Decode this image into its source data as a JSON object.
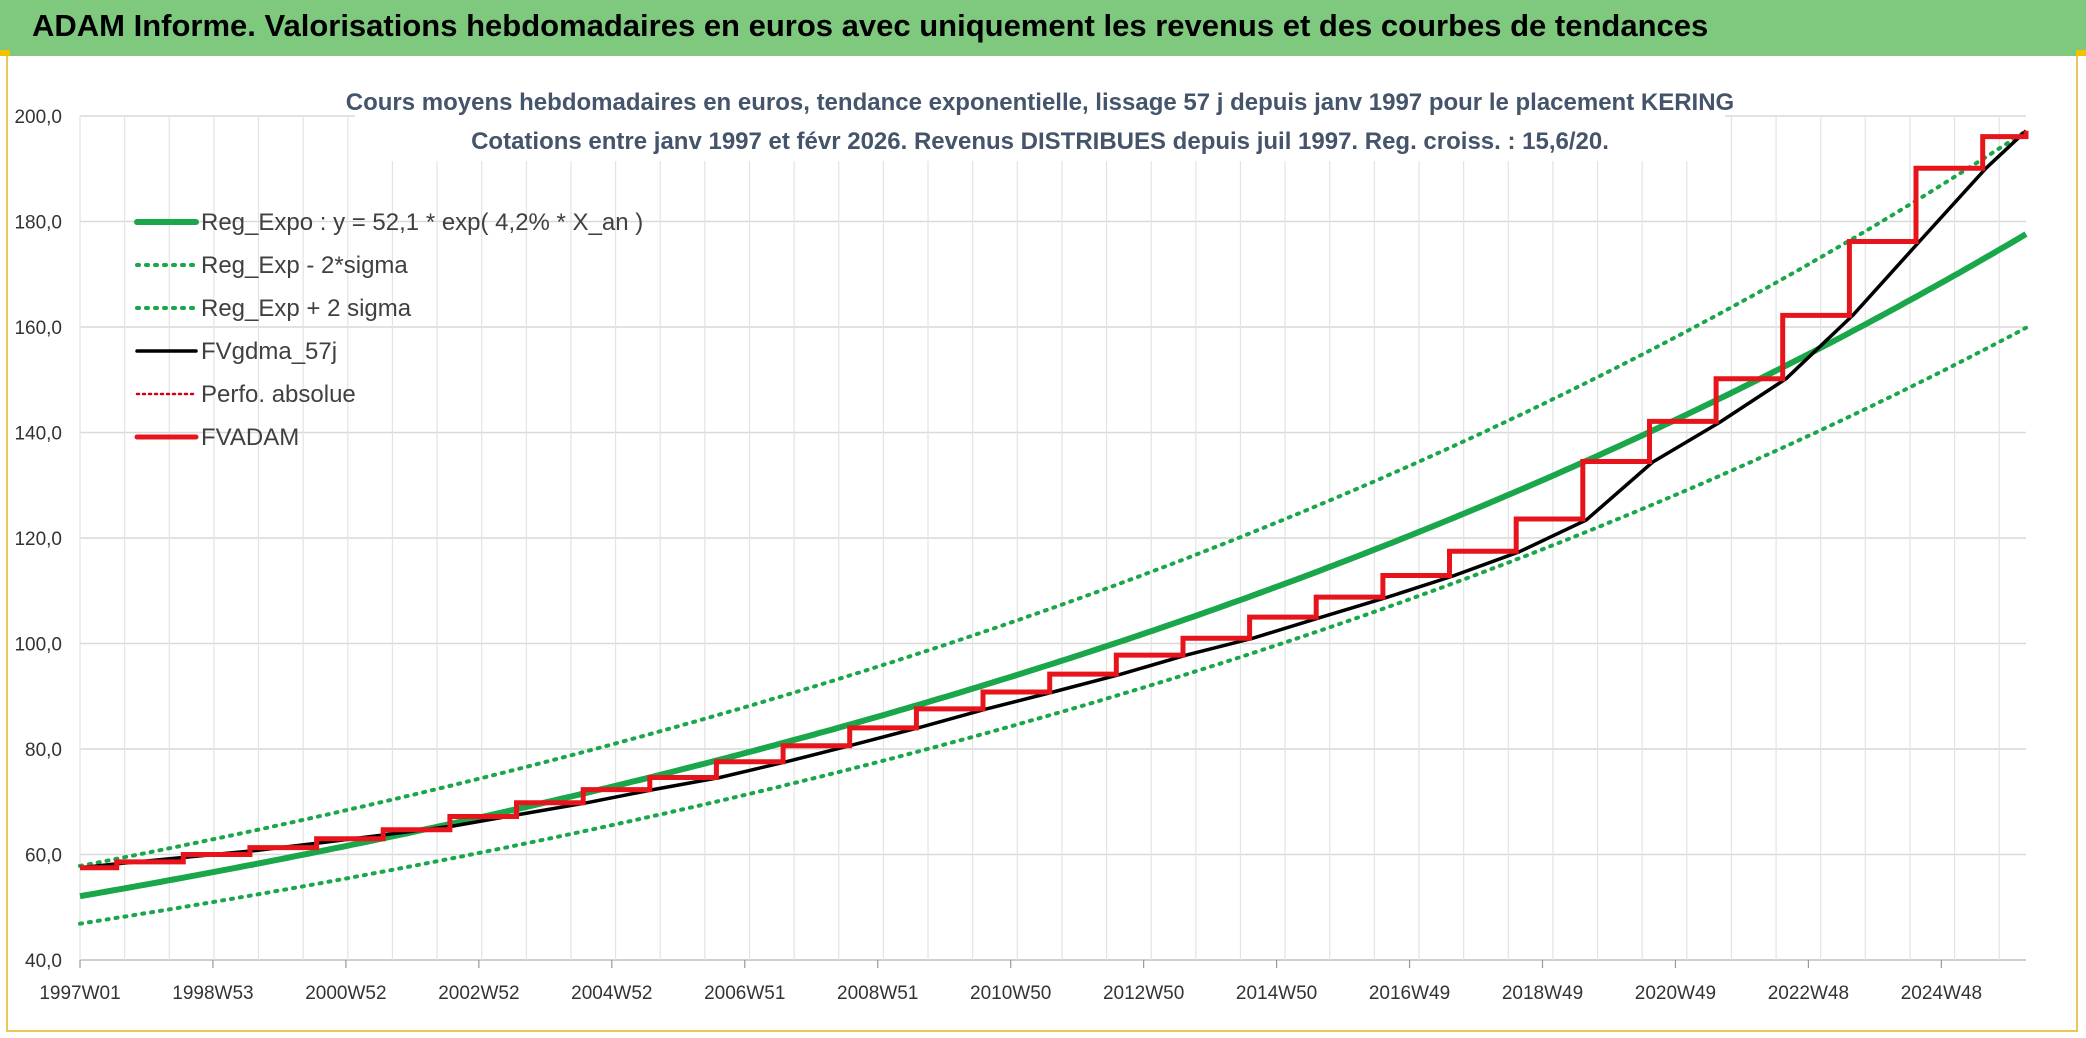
{
  "header": {
    "title": "ADAM Informe. Valorisations hebdomadaires en euros avec uniquement les revenus et des courbes de tendances",
    "background": "#7fc97f"
  },
  "chart_data": {
    "type": "line",
    "title_line1": "Cours moyens hebdomadaires en euros, tendance exponentielle, lissage 57 j depuis janv 1997 pour le placement KERING",
    "title_line2": "Cotations entre janv 1997 et févr 2026. Revenus DISTRIBUES depuis juil 1997. Reg. croiss. : 15,6/20.",
    "title_color": "#44546a",
    "xlabel": "",
    "ylabel": "",
    "x_tick_labels": [
      "1997W01",
      "1998W53",
      "2000W52",
      "2002W52",
      "2004W52",
      "2006W51",
      "2008W51",
      "2010W50",
      "2012W50",
      "2014W50",
      "2016W49",
      "2018W49",
      "2020W49",
      "2022W48",
      "2024W48"
    ],
    "x_start_year": 1997.0,
    "x_end_year": 2026.2,
    "xlim_years": [
      1997.0,
      2026.2
    ],
    "y_tick_labels": [
      "40,0",
      "60,0",
      "80,0",
      "100,0",
      "120,0",
      "140,0",
      "160,0",
      "180,0",
      "200,0"
    ],
    "ylim": [
      40,
      200
    ],
    "grid": true,
    "legend_position": "top-left",
    "regression": {
      "a": 52.1,
      "rate": 0.042,
      "band_factor": 0.9
    },
    "series": [
      {
        "name": "Reg_Expo : y = 52,1 * exp( 4,2% *  X_an )",
        "color": "#1aa64a",
        "style": "solid-thick",
        "x": [
          1997.0,
          2000.0,
          2003.0,
          2006.0,
          2009.0,
          2012.0,
          2015.0,
          2018.0,
          2021.0,
          2024.0,
          2026.2
        ],
        "values": [
          52.1,
          58.9,
          66.5,
          75.2,
          84.9,
          96.0,
          108.4,
          122.5,
          138.4,
          156.4,
          171.3
        ]
      },
      {
        "name": "Reg_Exp - 2*sigma",
        "color": "#1aa64a",
        "style": "dotted",
        "x": [
          1997.0,
          2000.0,
          2003.0,
          2006.0,
          2009.0,
          2012.0,
          2015.0,
          2018.0,
          2021.0,
          2024.0,
          2026.2
        ],
        "values": [
          46.9,
          53.0,
          59.9,
          67.7,
          76.4,
          86.4,
          97.6,
          110.3,
          124.6,
          140.8,
          154.2
        ]
      },
      {
        "name": "Reg_Exp + 2 sigma",
        "color": "#1aa64a",
        "style": "dotted",
        "x": [
          1997.0,
          2000.0,
          2003.0,
          2006.0,
          2009.0,
          2012.0,
          2015.0,
          2018.0,
          2021.0,
          2024.0,
          2026.2
        ],
        "values": [
          57.9,
          65.4,
          73.9,
          83.5,
          94.4,
          106.7,
          120.4,
          136.1,
          153.8,
          173.8,
          190.3
        ]
      },
      {
        "name": "FVgdma_57j",
        "color": "#000000",
        "style": "solid-thin",
        "x": [
          1997.0,
          1997.6,
          1998.6,
          1999.6,
          2000.6,
          2001.6,
          2002.6,
          2003.6,
          2004.6,
          2005.6,
          2006.6,
          2007.6,
          2008.6,
          2009.6,
          2010.6,
          2011.6,
          2012.6,
          2013.6,
          2014.6,
          2015.6,
          2016.6,
          2017.6,
          2018.6,
          2019.6,
          2020.6,
          2021.6,
          2022.6,
          2023.6,
          2024.6,
          2025.6,
          2026.2
        ],
        "values": [
          57.5,
          58.3,
          59.5,
          60.7,
          62.2,
          63.8,
          65.4,
          67.6,
          69.8,
          72.3,
          74.6,
          77.6,
          80.8,
          84.1,
          87.6,
          90.8,
          94.1,
          97.8,
          101.0,
          104.9,
          108.7,
          112.8,
          117.4,
          123.4,
          134.4,
          141.9,
          150.2,
          162.2,
          176.2,
          190.1,
          197.2
        ]
      },
      {
        "name": "Perfo. absolue",
        "color": "#d0021b",
        "style": "dotted-thin",
        "x": [],
        "values": []
      },
      {
        "name": "FVADAM",
        "color": "#e8141c",
        "style": "step-thick",
        "x": [
          1997.0,
          1997.55,
          1998.55,
          1999.55,
          2000.55,
          2001.55,
          2002.55,
          2003.55,
          2004.55,
          2005.55,
          2006.55,
          2007.55,
          2008.55,
          2009.55,
          2010.55,
          2011.55,
          2012.55,
          2013.55,
          2014.55,
          2015.55,
          2016.55,
          2017.55,
          2018.55,
          2019.55,
          2020.55,
          2021.55,
          2022.55,
          2023.55,
          2024.55,
          2025.55,
          2026.2
        ],
        "values": [
          57.5,
          58.6,
          60.0,
          61.3,
          63.0,
          64.7,
          67.2,
          69.8,
          72.3,
          74.6,
          77.6,
          80.6,
          84.0,
          87.6,
          90.8,
          94.2,
          97.8,
          101.0,
          105.0,
          108.8,
          112.9,
          117.5,
          123.6,
          134.5,
          142.1,
          150.2,
          162.2,
          176.2,
          190.1,
          196.1,
          197.2
        ]
      }
    ]
  }
}
